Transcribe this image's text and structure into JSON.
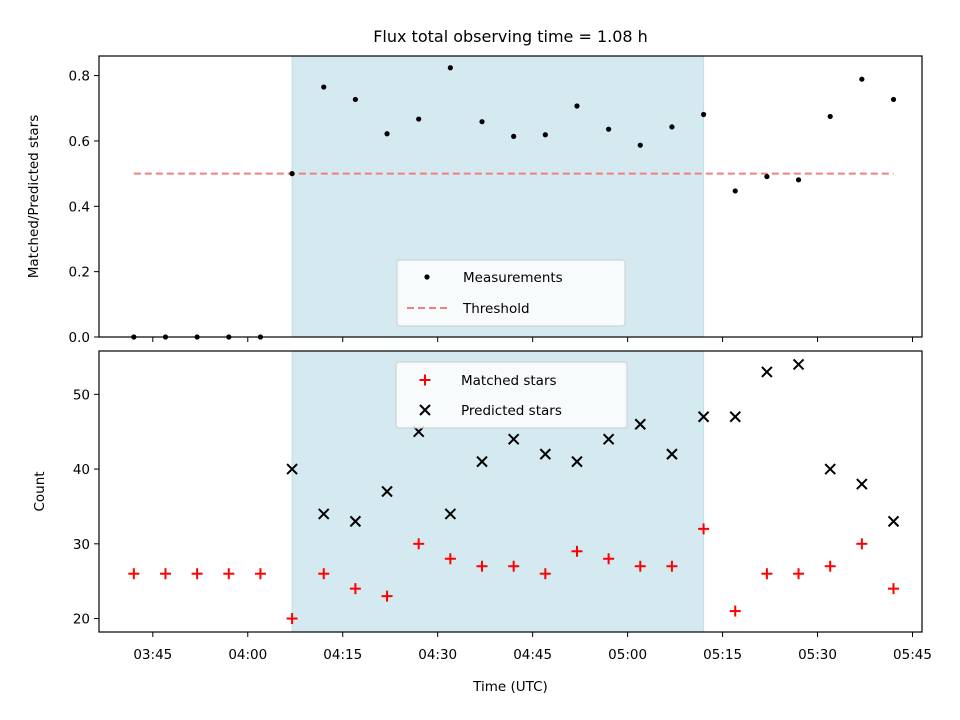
{
  "chart_data": [
    {
      "type": "scatter",
      "title": "Flux total observing time = 1.08 h",
      "xlabel": "",
      "ylabel": "Matched/Predicted stars",
      "ylim": [
        0.0,
        0.86
      ],
      "yticks": [
        "0.0",
        "0.2",
        "0.4",
        "0.6",
        "0.8"
      ],
      "highlight_span": {
        "x_start": "04:07",
        "x_end": "05:12",
        "color": "#d4eaf0"
      },
      "legend_position": "lower-center",
      "series": [
        {
          "name": "Measurements",
          "marker": "dot",
          "color": "#000000",
          "x": [
            "03:42",
            "03:47",
            "03:52",
            "03:57",
            "04:02",
            "04:07",
            "04:12",
            "04:17",
            "04:22",
            "04:27",
            "04:32",
            "04:37",
            "04:42",
            "04:47",
            "04:52",
            "04:57",
            "05:02",
            "05:07",
            "05:12",
            "05:17",
            "05:22",
            "05:27",
            "05:32",
            "05:37",
            "05:42"
          ],
          "y": [
            0.0,
            0.0,
            0.0,
            0.0,
            0.0,
            0.5,
            0.765,
            0.727,
            0.622,
            0.667,
            0.824,
            0.659,
            0.614,
            0.619,
            0.707,
            0.636,
            0.587,
            0.643,
            0.681,
            0.447,
            0.491,
            0.481,
            0.675,
            0.789,
            0.727
          ]
        },
        {
          "name": "Threshold",
          "style": "dashed",
          "color": "#f08080",
          "x": [
            "03:42",
            "05:42"
          ],
          "y": [
            0.5,
            0.5
          ]
        }
      ]
    },
    {
      "type": "scatter",
      "title": "",
      "xlabel": "Time (UTC)",
      "ylabel": "Count",
      "ylim": [
        18.2,
        55.8
      ],
      "yticks": [
        "20",
        "30",
        "40",
        "50"
      ],
      "xticks": [
        "03:45",
        "04:00",
        "04:15",
        "04:30",
        "04:45",
        "05:00",
        "05:15",
        "05:30",
        "05:45"
      ],
      "highlight_span": {
        "x_start": "04:07",
        "x_end": "05:12",
        "color": "#d4eaf0"
      },
      "legend_position": "upper-center",
      "series": [
        {
          "name": "Matched stars",
          "marker": "plus",
          "color": "#ff0000",
          "x": [
            "03:42",
            "03:47",
            "03:52",
            "03:57",
            "04:02",
            "04:07",
            "04:12",
            "04:17",
            "04:22",
            "04:27",
            "04:32",
            "04:37",
            "04:42",
            "04:47",
            "04:52",
            "04:57",
            "05:02",
            "05:07",
            "05:12",
            "05:17",
            "05:22",
            "05:27",
            "05:32",
            "05:37",
            "05:42"
          ],
          "y": [
            26,
            26,
            26,
            26,
            26,
            20,
            26,
            24,
            23,
            30,
            28,
            27,
            27,
            26,
            29,
            28,
            27,
            27,
            32,
            21,
            26,
            26,
            27,
            30,
            24
          ]
        },
        {
          "name": "Predicted stars",
          "marker": "x",
          "color": "#000000",
          "x": [
            "04:07",
            "04:12",
            "04:17",
            "04:22",
            "04:27",
            "04:32",
            "04:37",
            "04:42",
            "04:47",
            "04:52",
            "04:57",
            "05:02",
            "05:07",
            "05:12",
            "05:17",
            "05:22",
            "05:27",
            "05:32",
            "05:37",
            "05:42"
          ],
          "y": [
            40,
            34,
            33,
            37,
            45,
            34,
            41,
            44,
            42,
            41,
            44,
            46,
            42,
            47,
            47,
            53,
            54,
            40,
            38,
            33
          ]
        }
      ]
    }
  ]
}
